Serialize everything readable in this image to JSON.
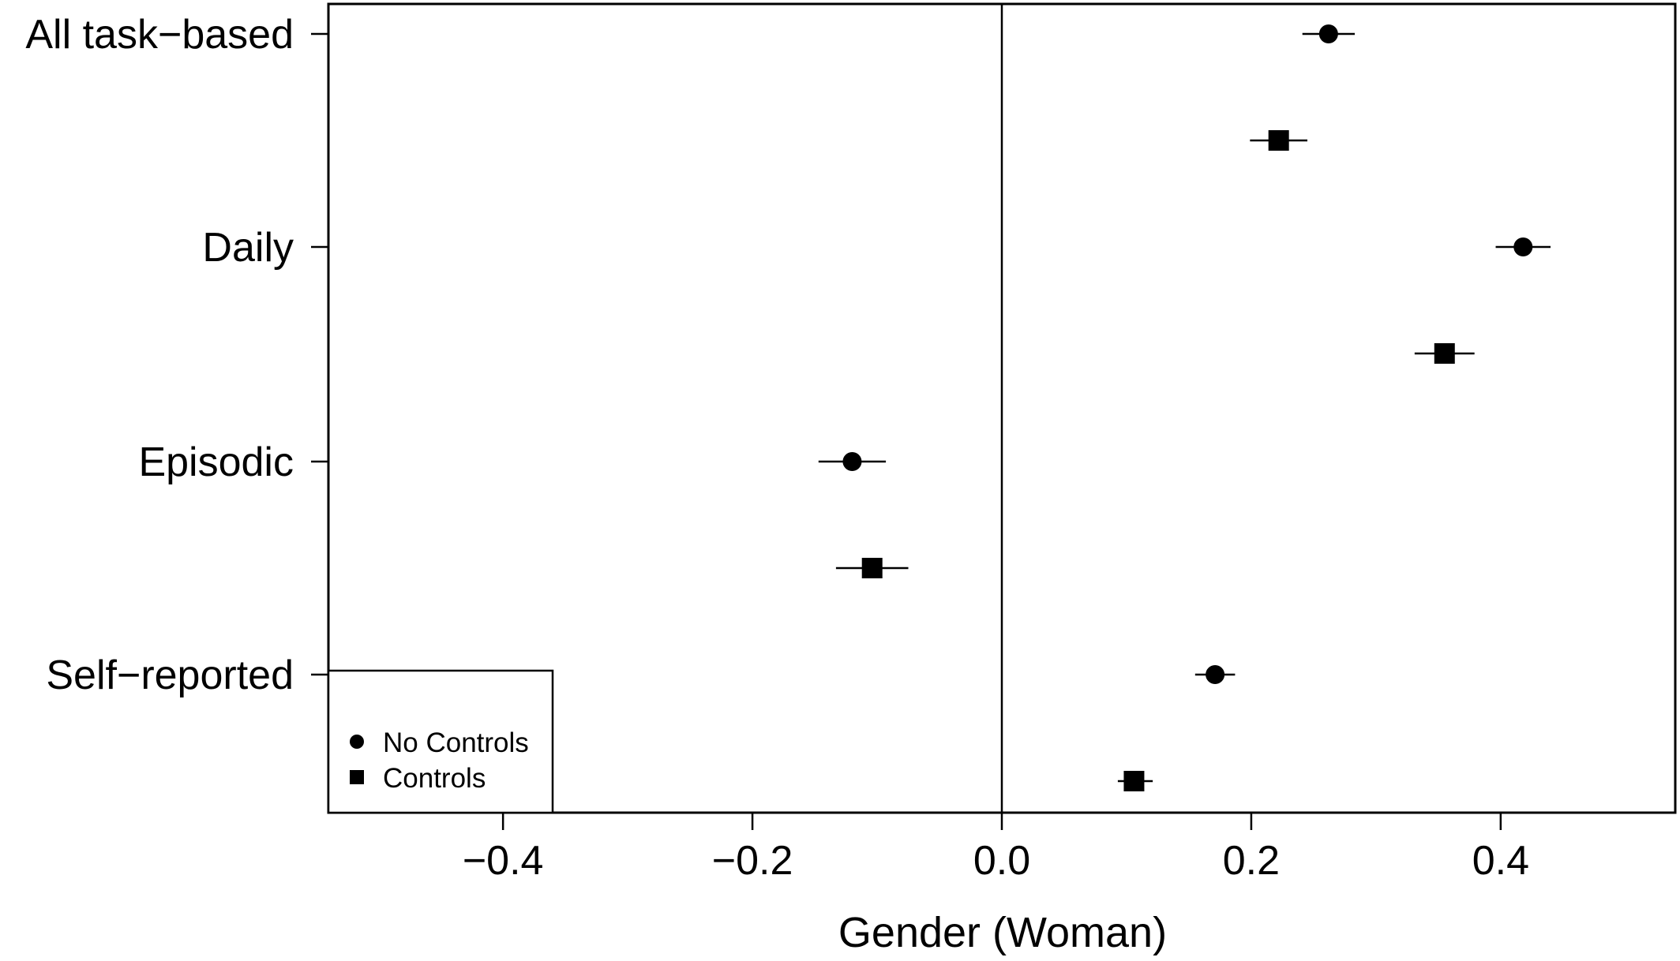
{
  "chart_data": {
    "type": "scatter",
    "subtype": "forest-plot",
    "title": "",
    "xlabel": "Gender (Woman)",
    "ylabel": "",
    "xlim": [
      -0.54,
      0.54
    ],
    "xticks": [
      -0.4,
      -0.2,
      0.0,
      0.2,
      0.4
    ],
    "xtick_labels": [
      "−0.4",
      "−0.2",
      "0.0",
      "0.2",
      "0.4"
    ],
    "reference_line": 0.0,
    "grid": false,
    "categories": [
      "All task−based",
      "Daily",
      "Episodic",
      "Self−reported"
    ],
    "series": [
      {
        "name": "No Controls",
        "marker": "circle",
        "values": [
          0.262,
          0.418,
          -0.12,
          0.171
        ],
        "ci_low": [
          0.241,
          0.396,
          -0.147,
          0.155
        ],
        "ci_high": [
          0.283,
          0.44,
          -0.093,
          0.187
        ]
      },
      {
        "name": "Controls",
        "marker": "square",
        "values": [
          0.222,
          0.355,
          -0.104,
          0.106
        ],
        "ci_low": [
          0.199,
          0.331,
          -0.133,
          0.093
        ],
        "ci_high": [
          0.245,
          0.379,
          -0.075,
          0.121
        ]
      }
    ],
    "legend": {
      "placement": "bottom-left",
      "entries": [
        "No Controls",
        "Controls"
      ]
    }
  }
}
